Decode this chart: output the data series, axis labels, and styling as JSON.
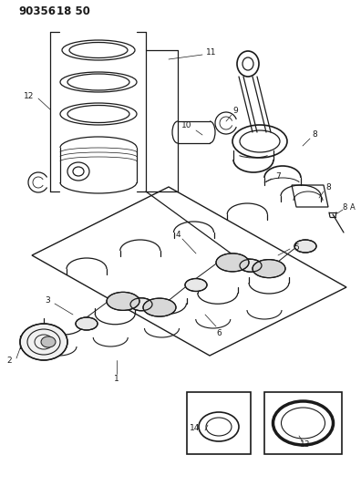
{
  "title1": "90356",
  "title2": "18 50",
  "bg_color": "#ffffff",
  "line_color": "#1a1a1a",
  "fig_width": 3.96,
  "fig_height": 5.33,
  "dpi": 100
}
